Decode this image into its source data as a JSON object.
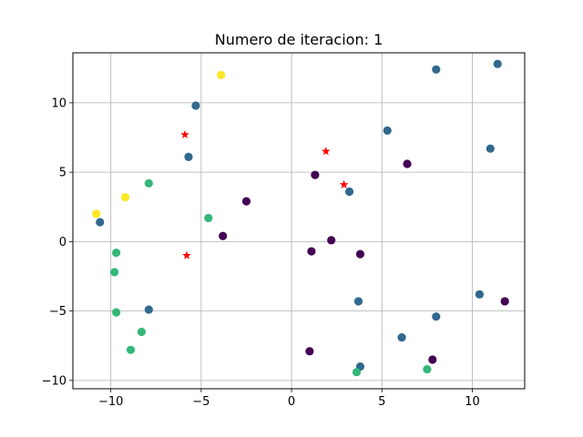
{
  "chart_data": {
    "type": "scatter",
    "title": "Numero de iteracion: 1",
    "xlabel": "",
    "ylabel": "",
    "xlim": [
      -12.1,
      12.9
    ],
    "ylim": [
      -10.6,
      13.6
    ],
    "xticks": [
      -10,
      -5,
      0,
      5,
      10
    ],
    "yticks": [
      -10,
      -5,
      0,
      5,
      10
    ],
    "grid": true,
    "colors": {
      "purple": "#440154",
      "blue": "#31688e",
      "green": "#35b779",
      "yellow": "#fde725",
      "centroid": "#ff0000"
    },
    "series": [
      {
        "color": "purple",
        "marker": "circle",
        "points": [
          [
            1.3,
            4.8
          ],
          [
            -2.5,
            2.9
          ],
          [
            -3.8,
            0.4
          ],
          [
            1.1,
            -0.7
          ],
          [
            2.2,
            0.1
          ],
          [
            3.8,
            -0.9
          ],
          [
            6.4,
            5.6
          ],
          [
            11.8,
            -4.3
          ],
          [
            1.0,
            -7.9
          ],
          [
            7.8,
            -8.5
          ]
        ]
      },
      {
        "color": "blue",
        "marker": "circle",
        "points": [
          [
            8.0,
            12.4
          ],
          [
            11.4,
            12.8
          ],
          [
            -5.3,
            9.8
          ],
          [
            5.3,
            8.0
          ],
          [
            11.0,
            6.7
          ],
          [
            -5.7,
            6.1
          ],
          [
            3.2,
            3.6
          ],
          [
            -10.6,
            1.4
          ],
          [
            3.7,
            -4.3
          ],
          [
            10.4,
            -3.8
          ],
          [
            8.0,
            -5.4
          ],
          [
            -7.9,
            -4.9
          ],
          [
            6.1,
            -6.9
          ],
          [
            3.8,
            -9.0
          ]
        ]
      },
      {
        "color": "green",
        "marker": "circle",
        "points": [
          [
            -7.9,
            4.2
          ],
          [
            -4.6,
            1.7
          ],
          [
            -9.7,
            -0.8
          ],
          [
            -9.8,
            -2.2
          ],
          [
            -9.7,
            -5.1
          ],
          [
            -8.3,
            -6.5
          ],
          [
            -8.9,
            -7.8
          ],
          [
            3.6,
            -9.4
          ],
          [
            7.5,
            -9.2
          ]
        ]
      },
      {
        "color": "yellow",
        "marker": "circle",
        "points": [
          [
            -3.9,
            12.0
          ],
          [
            -9.2,
            3.2
          ],
          [
            -10.8,
            2.0
          ]
        ]
      },
      {
        "color": "centroid",
        "marker": "star",
        "points": [
          [
            -5.9,
            7.7
          ],
          [
            1.9,
            6.5
          ],
          [
            2.9,
            4.1
          ],
          [
            -5.8,
            -1.0
          ]
        ]
      }
    ]
  }
}
